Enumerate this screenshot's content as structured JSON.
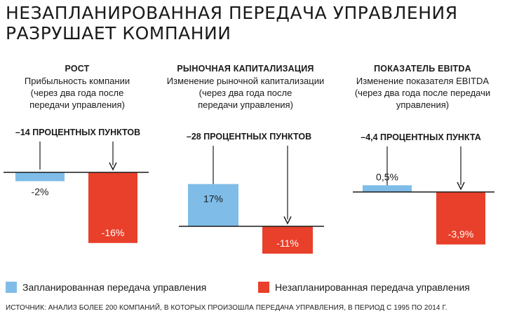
{
  "title_line1": "НЕЗАПЛАНИРОВАННАЯ ПЕРЕДАЧА УПРАВЛЕНИЯ",
  "title_line2": "РАЗРУШАЕТ КОМПАНИИ",
  "colors": {
    "planned": "#7fbde8",
    "unplanned": "#e8402a"
  },
  "chart_data": [
    {
      "type": "bar",
      "title": "РОСТ",
      "subtitle": [
        "Прибыльность компании",
        "(через два года после",
        "передачи управления)"
      ],
      "difference": "–14 ПРОЦЕНТНЫХ ПУНКТОВ",
      "categories": [
        "Запланированная передача управления",
        "Незапланированная передача управления"
      ],
      "values": [
        -2,
        -16
      ],
      "labels": [
        "-2%",
        "-16%"
      ]
    },
    {
      "type": "bar",
      "title": "РЫНОЧНАЯ КАПИТАЛИЗАЦИЯ",
      "subtitle": [
        "Изменение рыночной капитализации",
        "(через два года после",
        "передачи управления)"
      ],
      "difference": "–28 ПРОЦЕНТНЫХ ПУНКТОВ",
      "categories": [
        "Запланированная передача управления",
        "Незапланированная передача управления"
      ],
      "values": [
        17,
        -11
      ],
      "labels": [
        "17%",
        "-11%"
      ]
    },
    {
      "type": "bar",
      "title": "ПОКАЗАТЕЛЬ EBITDA",
      "subtitle": [
        "Изменение показателя EBITDA",
        "(через два года после передачи",
        "управления)"
      ],
      "difference": "–4,4 ПРОЦЕНТНЫХ ПУНКТА",
      "categories": [
        "Запланированная передача управления",
        "Незапланированная передача управления"
      ],
      "values": [
        0.5,
        -3.9
      ],
      "labels": [
        "0,5%",
        "-3,9%"
      ]
    }
  ],
  "legend": {
    "planned": "Запланированная передача управления",
    "unplanned": "Незапланированная передача управления"
  },
  "source": "ИСТОЧНИК: АНАЛИЗ БОЛЕЕ 200 КОМПАНИЙ, В КОТОРЫХ ПРОИЗОШЛА ПЕРЕДАЧА УПРАВЛЕНИЯ, В ПЕРИОД С 1995 ПО 2014 Г."
}
